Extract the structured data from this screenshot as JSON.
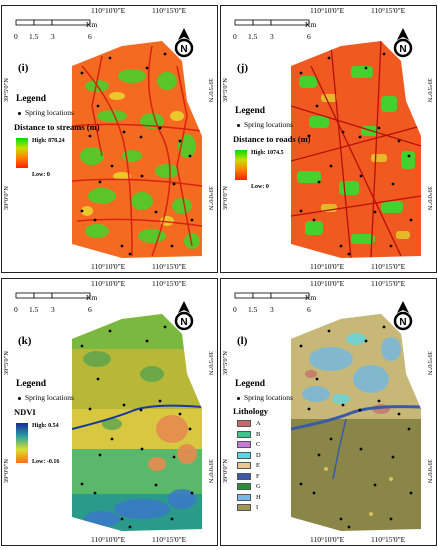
{
  "common": {
    "lon_left": "110°10'0\"E",
    "lon_right": "110°15'0\"E",
    "lat_top": "39°5'0\"N",
    "lat_bottom": "39°0'0\"N",
    "scale_unit": "Km",
    "scale_ticks": [
      "0",
      "1.5",
      "3",
      "6"
    ],
    "legend_title": "Legend",
    "spring_label": "Spring locations"
  },
  "panels": [
    {
      "id": "i",
      "label": "(i)",
      "layer_title": "Distance to streams (m)",
      "high": "High: 878.24",
      "low": "Low: 0",
      "ramp": [
        "#00e000",
        "#c8e000",
        "#ff8000",
        "#ff2000"
      ]
    },
    {
      "id": "j",
      "label": "(j)",
      "layer_title": "Distance to roads (m)",
      "high": "High: 1074.5",
      "low": "Low: 0",
      "ramp": [
        "#00e000",
        "#c8e000",
        "#ff8000",
        "#ff2000"
      ]
    },
    {
      "id": "k",
      "label": "(k)",
      "layer_title": "NDVI",
      "high": "High: 0.54",
      "low": "Low: -0.16",
      "ramp": [
        "#1a2a9a",
        "#2aa0a0",
        "#d8e030",
        "#ff7010"
      ]
    },
    {
      "id": "l",
      "label": "(l)",
      "layer_title": "Lithology",
      "classes": [
        {
          "name": "A",
          "color": "#c46a6a"
        },
        {
          "name": "B",
          "color": "#3ec48c"
        },
        {
          "name": "C",
          "color": "#c878d8"
        },
        {
          "name": "D",
          "color": "#5ad8e8"
        },
        {
          "name": "E",
          "color": "#e8c890"
        },
        {
          "name": "F",
          "color": "#3a5aa8"
        },
        {
          "name": "G",
          "color": "#2e8a3a"
        },
        {
          "name": "H",
          "color": "#78b8e8"
        },
        {
          "name": "I",
          "color": "#a09850"
        }
      ]
    }
  ]
}
